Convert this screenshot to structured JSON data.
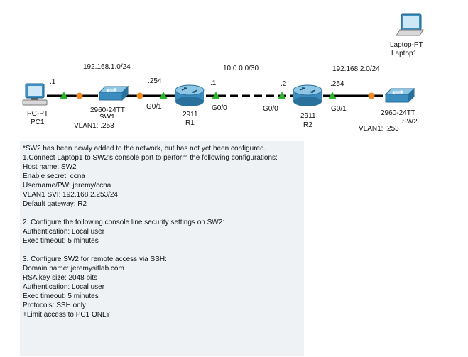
{
  "topology": {
    "subnets": {
      "lan1": "192.168.1.0/24",
      "wan": "10.0.0.0/30",
      "lan2": "192.168.2.0/24"
    },
    "addresses": {
      "pc1_host": ".1",
      "r1_g01": ".254",
      "r1_g00": ".1",
      "r2_g00": ".2",
      "r2_g01": ".254"
    },
    "interfaces": {
      "r1_left": "G0/1",
      "r1_right": "G0/0",
      "r2_left": "G0/0",
      "r2_right": "G0/1"
    },
    "devices": {
      "pc1": {
        "model": "PC-PT",
        "name": "PC1"
      },
      "sw1": {
        "model": "2960-24TT",
        "name": "SW1",
        "vlan": "VLAN1: .253"
      },
      "r1": {
        "model": "2911",
        "name": "R1"
      },
      "r2": {
        "model": "2911",
        "name": "R2"
      },
      "sw2": {
        "model": "2960-24TT",
        "name": "SW2",
        "vlan": "VLAN1: .253"
      },
      "laptop1": {
        "model": "Laptop-PT",
        "name": "Laptop1"
      }
    },
    "colors": {
      "link": "#000000",
      "link_up": "#2db52d",
      "link_pending": "#f08a24",
      "device_blue": "#2f86b8"
    }
  },
  "instructions": [
    "*SW2 has been newly added to the network, but has not yet been configured.",
    "1.Connect Laptop1 to SW2's console port to perform the following configurations:",
    "Host name: SW2",
    "Enable secret: ccna",
    "Username/PW: jeremy/ccna",
    "VLAN1 SVI: 192.168.2.253/24",
    "Default gateway: R2",
    "",
    "2. Configure the following console line security settings on SW2:",
    "Authentication: Local user",
    "Exec timeout: 5 minutes",
    "",
    "3. Configure SW2 for remote access via SSH:",
    "Domain name: jeremysitlab.com",
    "RSA key size: 2048 bits",
    "Authentication: Local user",
    "Exec timeout: 5 minutes",
    "Protocols: SSH only",
    "+Limit access to PC1 ONLY"
  ]
}
